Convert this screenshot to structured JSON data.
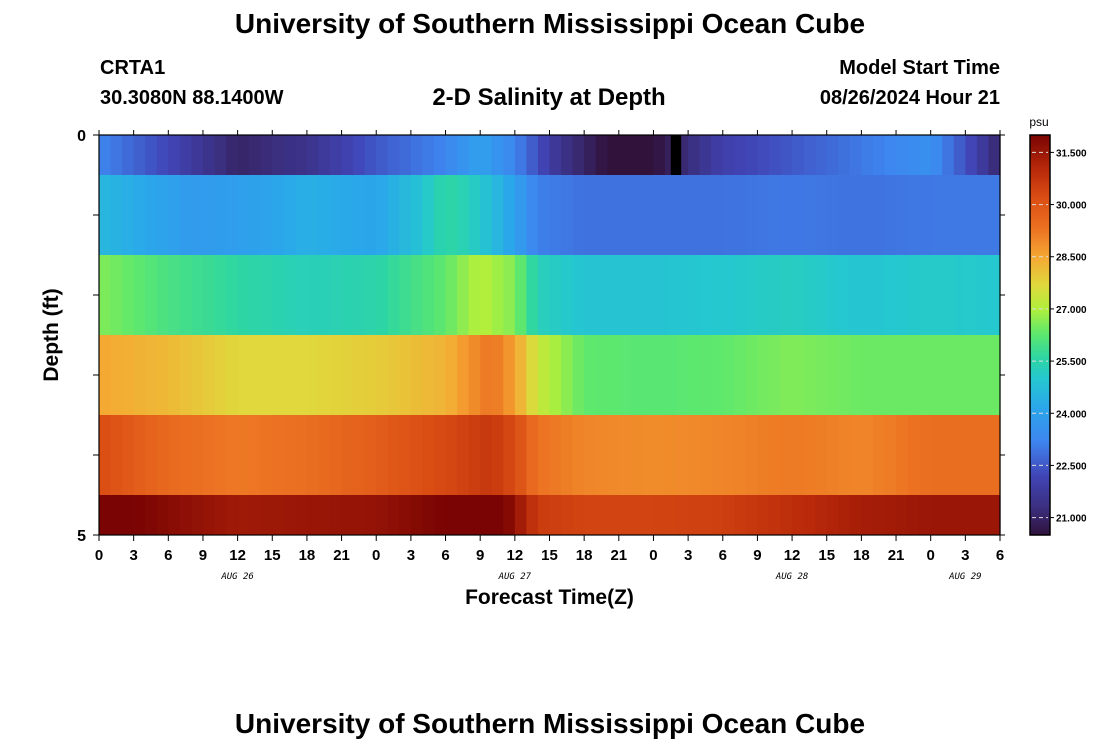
{
  "header": {
    "title": "University of Southern Mississippi Ocean Cube",
    "station": "CRTA1",
    "coords": "30.3080N  88.1400W",
    "subtitle": "2-D Salinity at Depth",
    "model_label": "Model Start Time",
    "model_time": "08/26/2024 Hour 21"
  },
  "footer": {
    "title": "University of Southern Mississippi Ocean Cube"
  },
  "chart_data": {
    "type": "heatmap",
    "title": "2-D Salinity at Depth",
    "xlabel": "Forecast Time(Z)",
    "ylabel": "Depth (ft)",
    "x_tick_labels": [
      "0",
      "3",
      "6",
      "9",
      "12",
      "15",
      "18",
      "21",
      "0",
      "3",
      "6",
      "9",
      "12",
      "15",
      "18",
      "21",
      "0",
      "3",
      "6",
      "9",
      "12",
      "15",
      "18",
      "21",
      "0",
      "3",
      "6"
    ],
    "x_hours": [
      0,
      3,
      6,
      9,
      12,
      15,
      18,
      21,
      24,
      27,
      30,
      33,
      36,
      39,
      42,
      45,
      48,
      51,
      54,
      57,
      60,
      63,
      66,
      69,
      72,
      75,
      78
    ],
    "x_range_hours": [
      0,
      78
    ],
    "date_labels": [
      {
        "label": "AUG 26",
        "hour": 12
      },
      {
        "label": "AUG 27",
        "hour": 36
      },
      {
        "label": "AUG 28",
        "hour": 60
      },
      {
        "label": "AUG 29",
        "hour": 75
      }
    ],
    "y_tick_labels": [
      "0",
      "5"
    ],
    "y_range": [
      0,
      5
    ],
    "layers": [
      {
        "depth": [
          0.0,
          0.5
        ],
        "key_hours": [
          0,
          6,
          12,
          18,
          24,
          30,
          33,
          36,
          40,
          44,
          48,
          50,
          54,
          60,
          66,
          72,
          76,
          78
        ],
        "values": [
          23.2,
          22.2,
          21.0,
          21.5,
          22.5,
          23.2,
          24.0,
          23.2,
          21.5,
          20.5,
          20.5,
          21.0,
          22.0,
          22.5,
          23.0,
          23.5,
          22.0,
          21.0
        ]
      },
      {
        "depth": [
          0.5,
          1.5
        ],
        "key_hours": [
          0,
          8,
          14,
          18,
          24,
          28,
          30,
          32,
          35,
          38,
          42,
          48,
          54,
          60,
          66,
          72,
          78
        ],
        "values": [
          24.6,
          23.8,
          24.0,
          24.4,
          24.1,
          24.9,
          25.6,
          25.3,
          24.4,
          23.1,
          22.9,
          22.9,
          22.9,
          23.0,
          22.9,
          23.0,
          23.0
        ]
      },
      {
        "depth": [
          1.5,
          2.5
        ],
        "key_hours": [
          0,
          6,
          12,
          18,
          24,
          30,
          33,
          36,
          38,
          42,
          48,
          54,
          60,
          66,
          72,
          78
        ],
        "values": [
          26.6,
          26.0,
          25.6,
          25.3,
          25.5,
          26.3,
          27.1,
          26.6,
          25.3,
          24.9,
          24.9,
          25.0,
          25.2,
          24.9,
          25.1,
          25.0
        ]
      },
      {
        "depth": [
          2.5,
          3.5
        ],
        "key_hours": [
          0,
          6,
          12,
          18,
          24,
          30,
          34,
          36,
          38,
          42,
          48,
          54,
          60,
          66,
          72,
          78
        ],
        "values": [
          28.5,
          28.2,
          27.7,
          27.7,
          27.9,
          28.3,
          29.3,
          28.6,
          27.3,
          26.3,
          26.2,
          26.3,
          26.6,
          26.4,
          26.4,
          26.4
        ]
      },
      {
        "depth": [
          3.5,
          4.5
        ],
        "key_hours": [
          0,
          6,
          12,
          18,
          24,
          30,
          34,
          36,
          38,
          42,
          48,
          54,
          60,
          66,
          72,
          78
        ],
        "values": [
          30.2,
          29.5,
          29.2,
          29.4,
          29.8,
          30.3,
          30.7,
          30.2,
          29.3,
          29.0,
          28.9,
          29.0,
          29.2,
          29.0,
          29.4,
          29.4
        ]
      },
      {
        "depth": [
          4.5,
          5.0
        ],
        "key_hours": [
          0,
          6,
          12,
          18,
          24,
          30,
          34,
          36,
          38,
          42,
          48,
          54,
          60,
          66,
          72,
          78
        ],
        "values": [
          32.2,
          31.8,
          31.4,
          31.5,
          31.6,
          32.0,
          32.5,
          31.6,
          30.6,
          30.4,
          30.4,
          30.5,
          30.9,
          31.3,
          31.5,
          31.5
        ]
      }
    ],
    "missing": {
      "depth": [
        0.0,
        0.5
      ],
      "hours": [
        49.5,
        50.4
      ]
    },
    "colorbar": {
      "unit": "psu",
      "range": [
        20.5,
        32.0
      ],
      "ticks": [
        "31.500",
        "30.000",
        "28.500",
        "27.000",
        "25.500",
        "24.000",
        "22.500",
        "21.000"
      ],
      "tick_values": [
        31.5,
        30.0,
        28.5,
        27.0,
        25.5,
        24.0,
        22.5,
        21.0
      ],
      "colormap": [
        {
          "v": 20.5,
          "c": "#30123b"
        },
        {
          "v": 21.3,
          "c": "#3b2f80"
        },
        {
          "v": 22.2,
          "c": "#4145b6"
        },
        {
          "v": 23.2,
          "c": "#3e86f0"
        },
        {
          "v": 24.2,
          "c": "#2aa8ea"
        },
        {
          "v": 25.0,
          "c": "#25c8cf"
        },
        {
          "v": 25.6,
          "c": "#2ed6a2"
        },
        {
          "v": 26.3,
          "c": "#5fe86c"
        },
        {
          "v": 27.0,
          "c": "#b1ef3c"
        },
        {
          "v": 27.7,
          "c": "#e0d83c"
        },
        {
          "v": 28.5,
          "c": "#f5a733"
        },
        {
          "v": 29.3,
          "c": "#ec7222"
        },
        {
          "v": 30.2,
          "c": "#da4d14"
        },
        {
          "v": 31.0,
          "c": "#b9290a"
        },
        {
          "v": 32.0,
          "c": "#7a0403"
        }
      ]
    }
  }
}
